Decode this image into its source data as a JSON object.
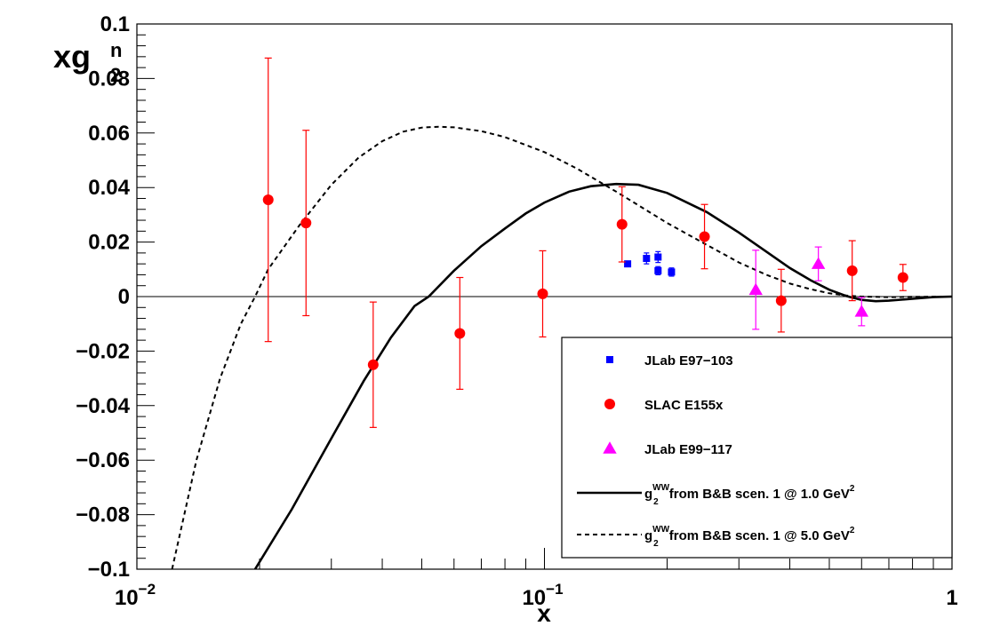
{
  "chart_data": {
    "type": "scatter",
    "title": "",
    "xlabel": "x",
    "ylabel": {
      "base": "xg",
      "sup": "n",
      "sub": "2"
    },
    "xscale": "log",
    "xlim": [
      0.01,
      1.0
    ],
    "ylim": [
      -0.1,
      0.1
    ],
    "grid": false,
    "legend_position": "bottom-right",
    "x_tick_labels": [
      {
        "value": 0.01,
        "base": "10",
        "exp": "−2"
      },
      {
        "value": 0.1,
        "base": "10",
        "exp": "−1"
      },
      {
        "value": 1.0,
        "base": "1",
        "exp": ""
      }
    ],
    "y_tick_labels": [
      {
        "value": 0.1,
        "text": "0.1"
      },
      {
        "value": 0.08,
        "text": "0.08"
      },
      {
        "value": 0.06,
        "text": "0.06"
      },
      {
        "value": 0.04,
        "text": "0.04"
      },
      {
        "value": 0.02,
        "text": "0.02"
      },
      {
        "value": 0.0,
        "text": "0"
      },
      {
        "value": -0.02,
        "text": "−0.02"
      },
      {
        "value": -0.04,
        "text": "−0.04"
      },
      {
        "value": -0.06,
        "text": "−0.06"
      },
      {
        "value": -0.08,
        "text": "−0.08"
      },
      {
        "value": -0.1,
        "text": "−0.1"
      }
    ],
    "series": [
      {
        "name": "JLab E97−103",
        "marker": "square",
        "color": "#0000ff",
        "points": [
          {
            "x": 0.16,
            "y": 0.012,
            "err": 0.0008
          },
          {
            "x": 0.178,
            "y": 0.014,
            "err": 0.002
          },
          {
            "x": 0.19,
            "y": 0.0145,
            "err": 0.002
          },
          {
            "x": 0.19,
            "y": 0.0095,
            "err": 0.0015
          },
          {
            "x": 0.205,
            "y": 0.009,
            "err": 0.0015
          }
        ]
      },
      {
        "name": "SLAC E155x",
        "marker": "circle",
        "color": "#ff0000",
        "points": [
          {
            "x": 0.021,
            "y": 0.0355,
            "err": 0.052
          },
          {
            "x": 0.026,
            "y": 0.027,
            "err": 0.034
          },
          {
            "x": 0.038,
            "y": -0.025,
            "err": 0.023
          },
          {
            "x": 0.062,
            "y": -0.0135,
            "err": 0.0205
          },
          {
            "x": 0.099,
            "y": 0.001,
            "err": 0.0158
          },
          {
            "x": 0.155,
            "y": 0.0265,
            "err": 0.0138
          },
          {
            "x": 0.247,
            "y": 0.022,
            "err": 0.0118
          },
          {
            "x": 0.381,
            "y": -0.0015,
            "err": 0.0115
          },
          {
            "x": 0.569,
            "y": 0.0095,
            "err": 0.011
          },
          {
            "x": 0.758,
            "y": 0.007,
            "err": 0.0048
          }
        ]
      },
      {
        "name": "JLab E99−117",
        "marker": "triangle",
        "color": "#ff00ff",
        "points": [
          {
            "x": 0.33,
            "y": 0.0025,
            "err": 0.0145
          },
          {
            "x": 0.47,
            "y": 0.012,
            "err": 0.0062
          },
          {
            "x": 0.6,
            "y": -0.0055,
            "err": 0.0052
          }
        ]
      }
    ],
    "curves": [
      {
        "name": "from B&B scen. 1 @ 1.0 GeV",
        "label_main": "g",
        "label_sup": "WW",
        "label_sub": "2",
        "label_text": " from B&B scen. 1 @ 1.0 GeV",
        "label_unit_sup": "2",
        "style": "solid",
        "points": [
          [
            0.0195,
            -0.1
          ],
          [
            0.024,
            -0.078
          ],
          [
            0.03,
            -0.052
          ],
          [
            0.036,
            -0.031
          ],
          [
            0.042,
            -0.015
          ],
          [
            0.048,
            -0.0035
          ],
          [
            0.052,
            0.0
          ],
          [
            0.06,
            0.0095
          ],
          [
            0.07,
            0.0185
          ],
          [
            0.08,
            0.025
          ],
          [
            0.09,
            0.0305
          ],
          [
            0.1,
            0.0345
          ],
          [
            0.115,
            0.0385
          ],
          [
            0.13,
            0.0405
          ],
          [
            0.15,
            0.0413
          ],
          [
            0.17,
            0.041
          ],
          [
            0.2,
            0.038
          ],
          [
            0.25,
            0.031
          ],
          [
            0.3,
            0.0235
          ],
          [
            0.35,
            0.0165
          ],
          [
            0.4,
            0.0105
          ],
          [
            0.45,
            0.006
          ],
          [
            0.5,
            0.0025
          ],
          [
            0.55,
            0.0002
          ],
          [
            0.6,
            -0.0012
          ],
          [
            0.65,
            -0.0017
          ],
          [
            0.7,
            -0.0015
          ],
          [
            0.8,
            -0.0008
          ],
          [
            0.9,
            -0.0002
          ],
          [
            1.0,
            0.0
          ]
        ]
      },
      {
        "name": "from B&B scen. 1 @ 5.0 GeV",
        "label_main": "g",
        "label_sup": "WW",
        "label_sub": "2",
        "label_text": " from B&B scen. 1 @ 5.0 GeV",
        "label_unit_sup": "2",
        "style": "dashed",
        "points": [
          [
            0.0122,
            -0.1
          ],
          [
            0.014,
            -0.06
          ],
          [
            0.016,
            -0.03
          ],
          [
            0.018,
            -0.01
          ],
          [
            0.0195,
            0.0
          ],
          [
            0.021,
            0.01
          ],
          [
            0.025,
            0.026
          ],
          [
            0.03,
            0.041
          ],
          [
            0.035,
            0.051
          ],
          [
            0.04,
            0.057
          ],
          [
            0.045,
            0.0605
          ],
          [
            0.05,
            0.062
          ],
          [
            0.055,
            0.0623
          ],
          [
            0.06,
            0.0621
          ],
          [
            0.07,
            0.0607
          ],
          [
            0.08,
            0.0585
          ],
          [
            0.1,
            0.053
          ],
          [
            0.12,
            0.047
          ],
          [
            0.15,
            0.0385
          ],
          [
            0.2,
            0.027
          ],
          [
            0.25,
            0.019
          ],
          [
            0.3,
            0.0125
          ],
          [
            0.35,
            0.008
          ],
          [
            0.4,
            0.0048
          ],
          [
            0.45,
            0.0027
          ],
          [
            0.5,
            0.0012
          ],
          [
            0.55,
            0.0004
          ],
          [
            0.6,
            0.0
          ],
          [
            0.7,
            -0.0002
          ],
          [
            0.8,
            -0.0001
          ],
          [
            1.0,
            0.0
          ]
        ]
      }
    ]
  }
}
